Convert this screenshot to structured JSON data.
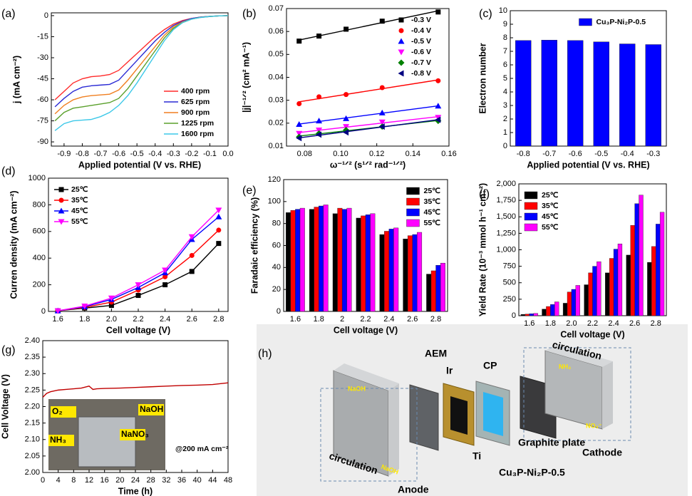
{
  "chart_data": [
    {
      "panel": "(a)",
      "type": "line",
      "xlabel": "Applied potential (V vs. RHE)",
      "ylabel": "j (mA cm⁻²)",
      "x": [
        -0.95,
        -0.9,
        -0.85,
        -0.8,
        -0.75,
        -0.7,
        -0.65,
        -0.6,
        -0.55,
        -0.5,
        -0.45,
        -0.4,
        -0.35,
        -0.3,
        -0.25,
        -0.2,
        -0.15,
        -0.1,
        -0.05,
        0
      ],
      "xlim": [
        -0.97,
        0
      ],
      "xticks": [
        -0.9,
        -0.8,
        -0.7,
        -0.6,
        -0.5,
        -0.4,
        -0.3,
        -0.2,
        -0.1,
        {
          "value": 0,
          "label": "0.0"
        }
      ],
      "ylim": [
        -93,
        2
      ],
      "yticks": [
        0,
        -15,
        -30,
        -45,
        -60,
        -75,
        -90
      ],
      "legend": "lower right",
      "series": [
        {
          "name": "400 rpm",
          "color": "#ff2a2a",
          "values": [
            -60,
            -54,
            -48,
            -45,
            -43.5,
            -43,
            -42,
            -39,
            -33,
            -27,
            -21,
            -15,
            -10,
            -6,
            -3.5,
            -2,
            -1,
            -0.5,
            -0.2,
            0
          ]
        },
        {
          "name": "625 rpm",
          "color": "#2a2ad4",
          "values": [
            -65,
            -59,
            -54,
            -51,
            -50,
            -49.5,
            -49,
            -46,
            -39,
            -32,
            -25,
            -18,
            -12,
            -7,
            -4,
            -2,
            -1,
            -0.5,
            -0.2,
            0
          ]
        },
        {
          "name": "900 rpm",
          "color": "#f07f20",
          "values": [
            -70,
            -64,
            -60,
            -58,
            -57,
            -56.5,
            -56,
            -53,
            -46,
            -38,
            -30,
            -22,
            -14,
            -8,
            -4.5,
            -2.5,
            -1.2,
            -0.6,
            -0.2,
            0
          ]
        },
        {
          "name": "1225 rpm",
          "color": "#5aa02c",
          "values": [
            -75,
            -69,
            -66,
            -65,
            -64,
            -63,
            -62,
            -59,
            -52,
            -43,
            -34,
            -25,
            -16,
            -9,
            -5,
            -2.5,
            -1.2,
            -0.6,
            -0.2,
            0
          ]
        },
        {
          "name": "1600 rpm",
          "color": "#3cc8e8",
          "values": [
            -82,
            -77,
            -75,
            -74.5,
            -74,
            -72,
            -69,
            -64,
            -57,
            -48,
            -38,
            -28,
            -18,
            -10,
            -5,
            -2.5,
            -1.3,
            -0.6,
            -0.2,
            0
          ]
        }
      ]
    },
    {
      "panel": "(b)",
      "type": "scatter",
      "xlabel": "ω⁻¹ᐟ² (s¹ᐟ² rad⁻¹ᐟ²)",
      "ylabel": "|j|⁻¹ᐟ² (cm² mA⁻¹)",
      "x": [
        0.077,
        0.088,
        0.103,
        0.123,
        0.154
      ],
      "xlim": [
        0.07,
        0.16
      ],
      "xticks": [
        0.08,
        {
          "value": 0.1,
          "label": "0.10"
        },
        0.12,
        0.14,
        0.16
      ],
      "ylim": [
        0.01,
        0.07
      ],
      "yticks": [
        0.01,
        0.02,
        0.03,
        0.04,
        0.05,
        0.06,
        0.07
      ],
      "legend": "upper right",
      "series": [
        {
          "name": "-0.3 V",
          "color": "#000000",
          "marker": "square",
          "values": [
            0.0558,
            0.058,
            0.061,
            0.0645,
            0.0685
          ]
        },
        {
          "name": "-0.4 V",
          "color": "#ff0000",
          "marker": "circle",
          "values": [
            0.0285,
            0.0315,
            0.0325,
            0.0355,
            0.0385
          ]
        },
        {
          "name": "-0.5 V",
          "color": "#0000ff",
          "marker": "triangle",
          "values": [
            0.0195,
            0.021,
            0.022,
            0.0245,
            0.0275
          ]
        },
        {
          "name": "-0.6 V",
          "color": "#ff00ff",
          "marker": "triangle-down",
          "values": [
            0.0155,
            0.017,
            0.0185,
            0.0205,
            0.0225
          ]
        },
        {
          "name": "-0.7 V",
          "color": "#008000",
          "marker": "diamond",
          "values": [
            0.014,
            0.0155,
            0.017,
            0.0185,
            0.021
          ]
        },
        {
          "name": "-0.8 V",
          "color": "#000080",
          "marker": "triangle-left",
          "values": [
            0.0135,
            0.015,
            0.016,
            0.0185,
            0.0215
          ]
        }
      ]
    },
    {
      "panel": "(c)",
      "type": "bar",
      "xlabel": "Applied potential (V vs. RHE)",
      "ylabel": "Electron number",
      "categories": [
        "-0.8",
        "-0.7",
        "-0.6",
        "-0.5",
        "-0.4",
        "-0.3"
      ],
      "ylim": [
        0,
        10
      ],
      "yticks": [
        0,
        1,
        2,
        3,
        4,
        5,
        6,
        7,
        8,
        9,
        10
      ],
      "legend": "upper right",
      "series": [
        {
          "name": "Cu₃P-Ni₂P-0.5",
          "color": "#0000ff",
          "values": [
            7.8,
            7.83,
            7.8,
            7.7,
            7.55,
            7.5
          ]
        }
      ]
    },
    {
      "panel": "(d)",
      "type": "line",
      "xlabel": "Cell voltage (V)",
      "ylabel": "Curren density (mA cm⁻²)",
      "x": [
        1.6,
        1.8,
        2.0,
        2.2,
        2.4,
        2.6,
        2.8
      ],
      "xlim": [
        1.53,
        2.87
      ],
      "xticks": [
        1.6,
        1.8,
        {
          "value": 2,
          "label": "2.0"
        },
        2.2,
        2.4,
        2.6,
        2.8
      ],
      "ylim": [
        0,
        1000
      ],
      "yticks": [
        0,
        200,
        400,
        600,
        800,
        1000
      ],
      "legend": "upper left",
      "series": [
        {
          "name": "25℃",
          "color": "#000000",
          "marker": "square",
          "values": [
            5,
            25,
            45,
            120,
            200,
            300,
            510
          ]
        },
        {
          "name": "35℃",
          "color": "#ff0000",
          "marker": "circle",
          "values": [
            5,
            30,
            70,
            160,
            260,
            420,
            610
          ]
        },
        {
          "name": "45℃",
          "color": "#0000ff",
          "marker": "triangle",
          "values": [
            5,
            35,
            90,
            180,
            290,
            540,
            710
          ]
        },
        {
          "name": "55℃",
          "color": "#ff00ff",
          "marker": "triangle-down",
          "values": [
            5,
            40,
            100,
            200,
            310,
            560,
            760
          ]
        }
      ]
    },
    {
      "panel": "(e)",
      "type": "bar",
      "xlabel": "Cell voltage (V)",
      "ylabel": "Faradaic efficiency (%)",
      "categories": [
        "1.6",
        "1.8",
        "2",
        "2.2",
        "2.4",
        "2.6",
        "2.8"
      ],
      "ylim": [
        0,
        120
      ],
      "yticks": [
        0,
        20,
        40,
        60,
        80,
        100,
        120
      ],
      "legend": "upper right",
      "series": [
        {
          "name": "25℃",
          "color": "#000000",
          "values": [
            90,
            93,
            89,
            85,
            70,
            66,
            34
          ]
        },
        {
          "name": "35℃",
          "color": "#ff0000",
          "values": [
            92,
            95,
            94,
            87,
            73,
            69,
            37
          ]
        },
        {
          "name": "45℃",
          "color": "#0000ff",
          "values": [
            93,
            96,
            93,
            88,
            75,
            70,
            42
          ]
        },
        {
          "name": "55℃",
          "color": "#ff00ff",
          "values": [
            94,
            97,
            94,
            89,
            76,
            72,
            44
          ]
        }
      ]
    },
    {
      "panel": "(f)",
      "type": "bar",
      "xlabel": "Cell voltage (V)",
      "ylabel": "Yield Rate (10⁻³ mmol h⁻¹ cm⁻²)",
      "categories": [
        "1.6",
        "1.8",
        "2.0",
        "2.2",
        "2.4",
        "2.6",
        "2.8"
      ],
      "ylim": [
        0,
        2000
      ],
      "yticks": [
        0,
        250,
        500,
        750,
        {
          "value": 1000,
          "label": "1,000"
        },
        {
          "value": 1250,
          "label": "1,250"
        },
        {
          "value": 1500,
          "label": "1,500"
        },
        {
          "value": 1750,
          "label": "1,750"
        },
        {
          "value": 2000,
          "label": "2,000"
        }
      ],
      "legend": "upper left",
      "series": [
        {
          "name": "25℃",
          "color": "#000000",
          "values": [
            20,
            100,
            190,
            470,
            650,
            920,
            810
          ]
        },
        {
          "name": "35℃",
          "color": "#ff0000",
          "values": [
            25,
            140,
            360,
            650,
            870,
            1370,
            1050
          ]
        },
        {
          "name": "45℃",
          "color": "#0000ff",
          "values": [
            30,
            170,
            400,
            750,
            1010,
            1700,
            1390
          ]
        },
        {
          "name": "55℃",
          "color": "#ff00ff",
          "values": [
            35,
            210,
            460,
            820,
            1090,
            1830,
            1570
          ]
        }
      ]
    },
    {
      "panel": "(g)",
      "type": "line",
      "xlabel": "Time (h)",
      "ylabel": "Cell Voltage (V)",
      "x": [
        0,
        1,
        2,
        4,
        6,
        8,
        10,
        12,
        13,
        14,
        16,
        20,
        24,
        28,
        32,
        36,
        40,
        44,
        48
      ],
      "xlim": [
        0,
        48
      ],
      "xticks": [
        0,
        4,
        8,
        12,
        16,
        20,
        24,
        28,
        32,
        36,
        40,
        44,
        48
      ],
      "ylim": [
        2.0,
        2.4
      ],
      "yticks": [
        {
          "value": 2,
          "label": "2.00"
        },
        {
          "value": 2.05,
          "label": "2.05"
        },
        {
          "value": 2.1,
          "label": "2.10"
        },
        2.15,
        {
          "value": 2.2,
          "label": "2.20"
        },
        2.25,
        {
          "value": 2.3,
          "label": "2.30"
        },
        2.35,
        {
          "value": 2.4,
          "label": "2.40"
        }
      ],
      "annotations": [
        "O₂",
        "NaOH",
        "NH₃",
        "NaNO₃",
        "@200 mA cm⁻²"
      ],
      "series": [
        {
          "color": "#c00000",
          "values": [
            2.228,
            2.24,
            2.245,
            2.25,
            2.252,
            2.254,
            2.256,
            2.262,
            2.252,
            2.254,
            2.255,
            2.256,
            2.258,
            2.26,
            2.262,
            2.264,
            2.265,
            2.267,
            2.272
          ]
        }
      ]
    }
  ],
  "diagram": {
    "panel": "(h)",
    "aem": "AEM",
    "ir": "Ir",
    "cp": "CP",
    "circulation_top": "circulation",
    "circulation_bottom": "circulation",
    "naoh_left": "NaOH",
    "naoh_bottom": "NaOH",
    "nh3": "NH₃",
    "no3": "NO₃⁻",
    "graphite": "Graphite plate",
    "cathode": "Cathode",
    "ti": "Ti",
    "catalyst": "Cu₃P-Ni₂P-0.5",
    "anode": "Anode"
  }
}
